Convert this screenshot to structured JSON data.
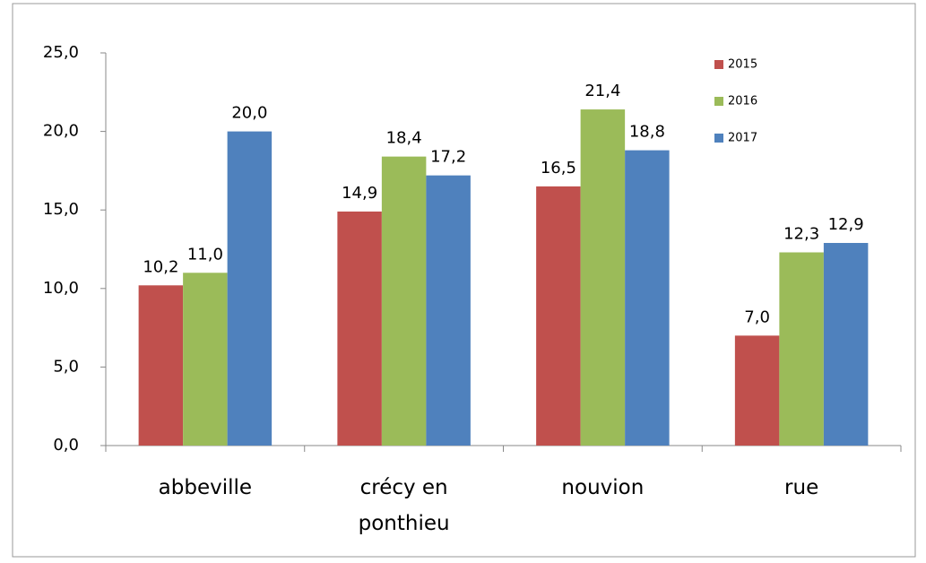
{
  "chart_data": {
    "type": "bar",
    "categories": [
      "abbeville",
      "crécy en ponthieu",
      "nouvion",
      "rue"
    ],
    "series": [
      {
        "name": "2015",
        "color": "#c0504d",
        "values": [
          10.2,
          14.9,
          16.5,
          7.0
        ],
        "value_labels": [
          "10,2",
          "14,9",
          "16,5",
          "7,0"
        ]
      },
      {
        "name": "2016",
        "color": "#9bbb59",
        "values": [
          11.0,
          18.4,
          21.4,
          12.3
        ],
        "value_labels": [
          "11,0",
          "18,4",
          "21,4",
          "12,3"
        ]
      },
      {
        "name": "2017",
        "color": "#4f81bd",
        "values": [
          20.0,
          17.2,
          18.8,
          12.9
        ],
        "value_labels": [
          "20,0",
          "17,2",
          "18,8",
          "12,9"
        ]
      }
    ],
    "ylim": [
      0,
      25
    ],
    "yticks": [
      {
        "value": 0,
        "label": "0,0"
      },
      {
        "value": 5,
        "label": "5,0"
      },
      {
        "value": 10,
        "label": "10,0"
      },
      {
        "value": 15,
        "label": "15,0"
      },
      {
        "value": 20,
        "label": "20,0"
      },
      {
        "value": 25,
        "label": "25,0"
      }
    ],
    "grid": false,
    "legend": "top-right"
  }
}
